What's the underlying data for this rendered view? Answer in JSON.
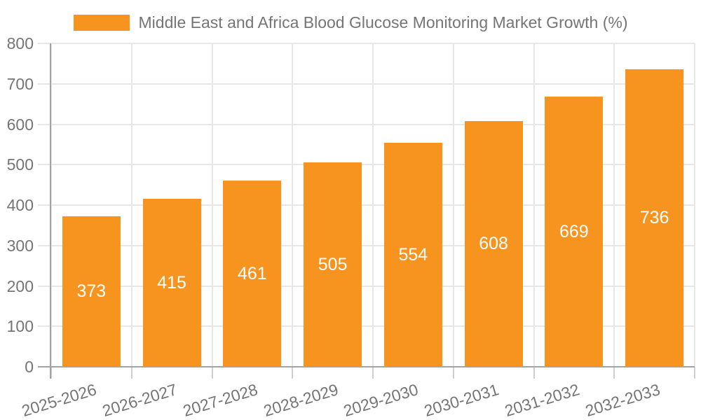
{
  "legend": {
    "label": "Middle East and Africa Blood Glucose Monitoring Market Growth (%)"
  },
  "chart_data": {
    "type": "bar",
    "title": "Middle East and Africa Blood Glucose Monitoring Market Growth (%)",
    "categories": [
      "2025-2026",
      "2026-2027",
      "2027-2028",
      "2028-2029",
      "2029-2030",
      "2030-2031",
      "2031-2032",
      "2032-2033"
    ],
    "values": [
      373,
      415,
      461,
      505,
      554,
      608,
      669,
      736
    ],
    "xlabel": "",
    "ylabel": "",
    "ylim": [
      0,
      800
    ],
    "ytick_step": 100,
    "grid": true,
    "legend_position": "top",
    "bar_color": "#f7941f",
    "bar_label_color": "#ffffff",
    "axis_text_color": "#757575",
    "axis_line_color": "#a3a3a3",
    "tick_line_color": "#cfcfcf",
    "gridline_color": "#e7e7e7",
    "background_color": "#ffffff"
  }
}
